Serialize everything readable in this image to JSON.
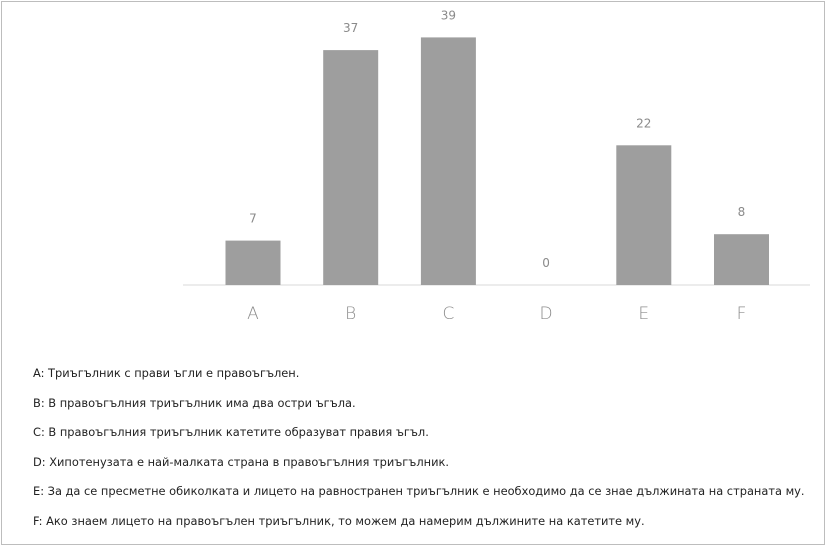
{
  "chart_data": {
    "type": "bar",
    "categories": [
      "A",
      "B",
      "C",
      "D",
      "E",
      "F"
    ],
    "values": [
      7,
      37,
      39,
      0,
      22,
      8
    ],
    "title": "",
    "xlabel": "",
    "ylabel": "",
    "grid": false,
    "data_labels": true,
    "bar_color": "#9e9e9e",
    "axis_color": "#d9d9d9"
  },
  "legend": [
    "A: Триъгълник с прави ъгли е правоъгълен.",
    "B: В правоъгълния триъгълник има два остри ъгъла.",
    "C: В правоъгълния триъгълник катетите образуват правия ъгъл.",
    "D: Хипотенузата е най-малката страна в правоъгълния триъгълник.",
    "E: За да се пресметне обиколката и лицето на равностранен триъгълник е необходимо да се знае дължината на страната му.",
    "F: Ако знаем лицето на правоъгълен триъгълник, то можем да намерим дължините на катетите му."
  ]
}
